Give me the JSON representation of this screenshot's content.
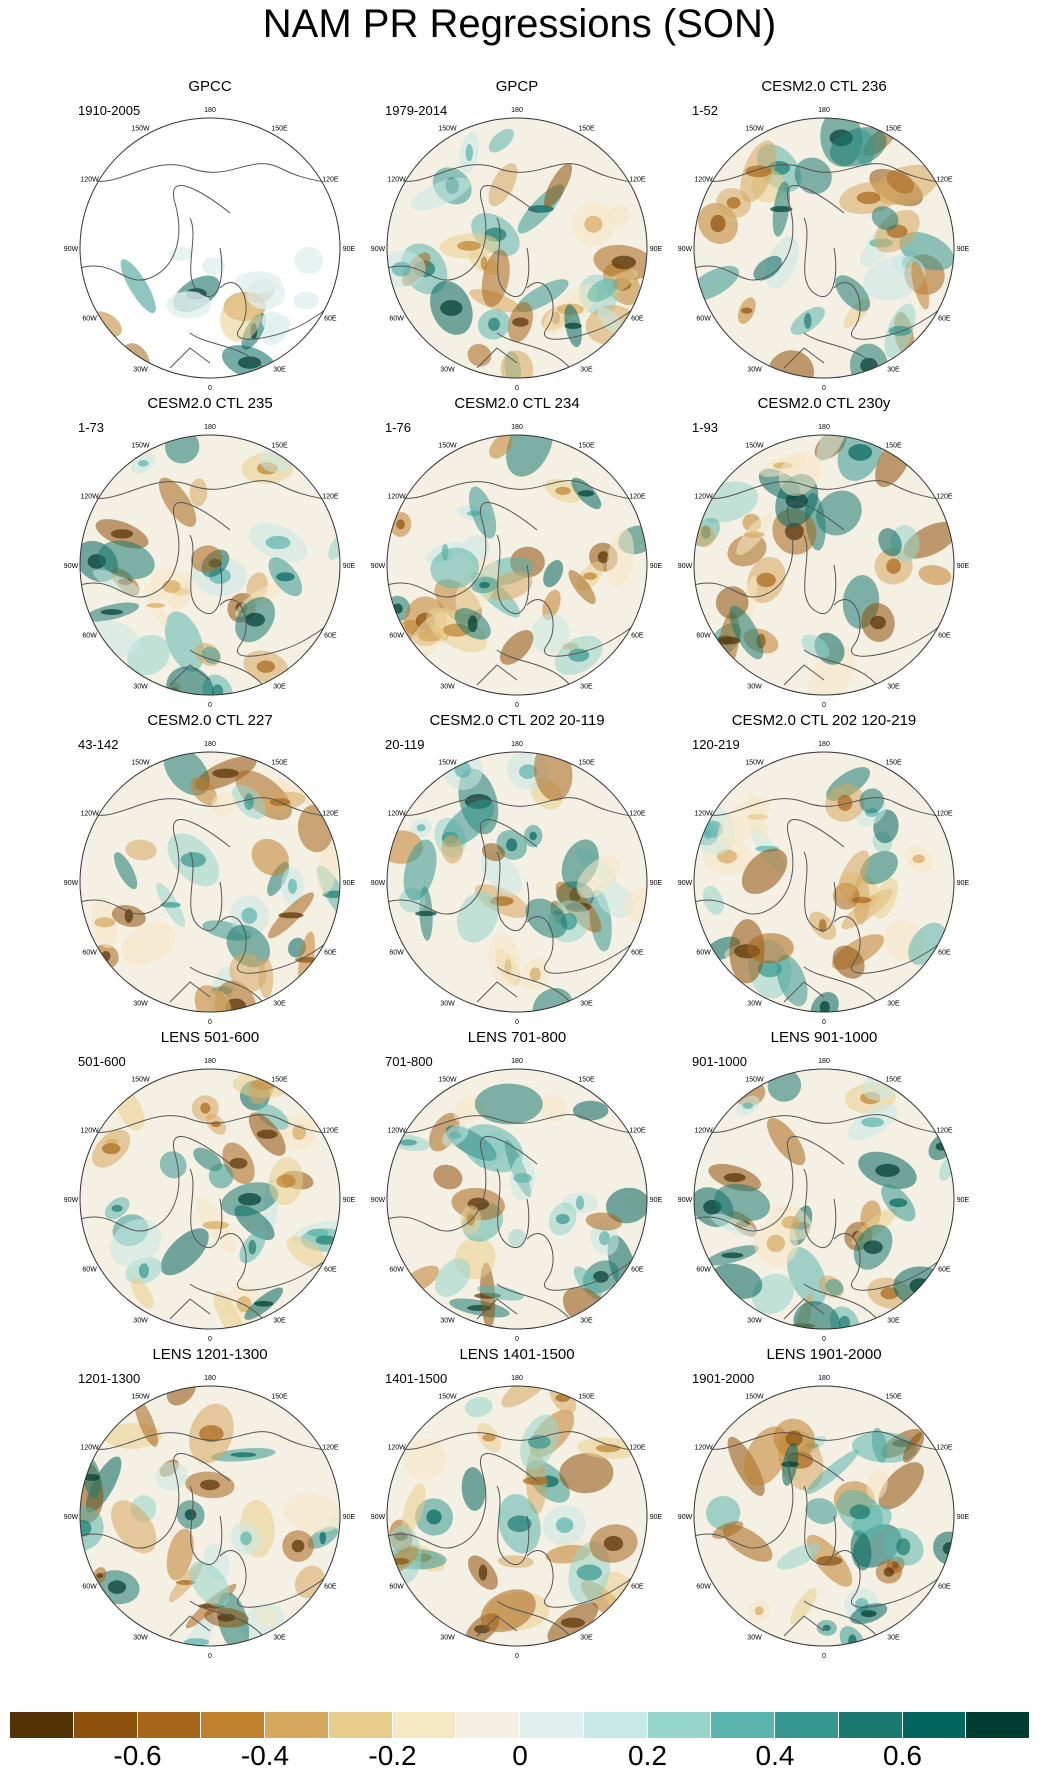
{
  "title": "NAM PR Regressions (SON)",
  "longitude_labels": [
    "180",
    "150E",
    "120E",
    "90E",
    "60E",
    "30E",
    "0",
    "30W",
    "60W",
    "90W",
    "120W",
    "150W"
  ],
  "panels": [
    {
      "title": "GPCC",
      "period": "1910-2005",
      "mask": true
    },
    {
      "title": "GPCP",
      "period": "1979-2014",
      "mask": false
    },
    {
      "title": "CESM2.0 CTL 236",
      "period": "1-52",
      "mask": false
    },
    {
      "title": "CESM2.0 CTL 235",
      "period": "1-73",
      "mask": false
    },
    {
      "title": "CESM2.0 CTL 234",
      "period": "1-76",
      "mask": false
    },
    {
      "title": "CESM2.0 CTL 230y",
      "period": "1-93",
      "mask": false
    },
    {
      "title": "CESM2.0 CTL 227",
      "period": "43-142",
      "mask": false
    },
    {
      "title": "CESM2.0 CTL 202 20-119",
      "period": "20-119",
      "mask": false
    },
    {
      "title": "CESM2.0 CTL 202 120-219",
      "period": "120-219",
      "mask": false
    },
    {
      "title": "LENS 501-600",
      "period": "501-600",
      "mask": false
    },
    {
      "title": "LENS 701-800",
      "period": "701-800",
      "mask": false
    },
    {
      "title": "LENS 901-1000",
      "period": "901-1000",
      "mask": false
    },
    {
      "title": "LENS 1201-1300",
      "period": "1201-1300",
      "mask": false
    },
    {
      "title": "LENS 1401-1500",
      "period": "1401-1500",
      "mask": false
    },
    {
      "title": "LENS 1901-2000",
      "period": "1901-2000",
      "mask": false
    }
  ],
  "colorbar": {
    "colors": [
      "#543005",
      "#8c510a",
      "#a8661a",
      "#bf812d",
      "#d6a85e",
      "#e9cd8d",
      "#f6e8c3",
      "#f5f0e4",
      "#e0f0ee",
      "#c7eae5",
      "#96d5ca",
      "#5ab4ac",
      "#35978f",
      "#1b7a6f",
      "#01665e",
      "#003c30"
    ],
    "tick_labels": [
      "-0.6",
      "-0.4",
      "-0.2",
      "0",
      "0.2",
      "0.4",
      "0.6"
    ]
  }
}
